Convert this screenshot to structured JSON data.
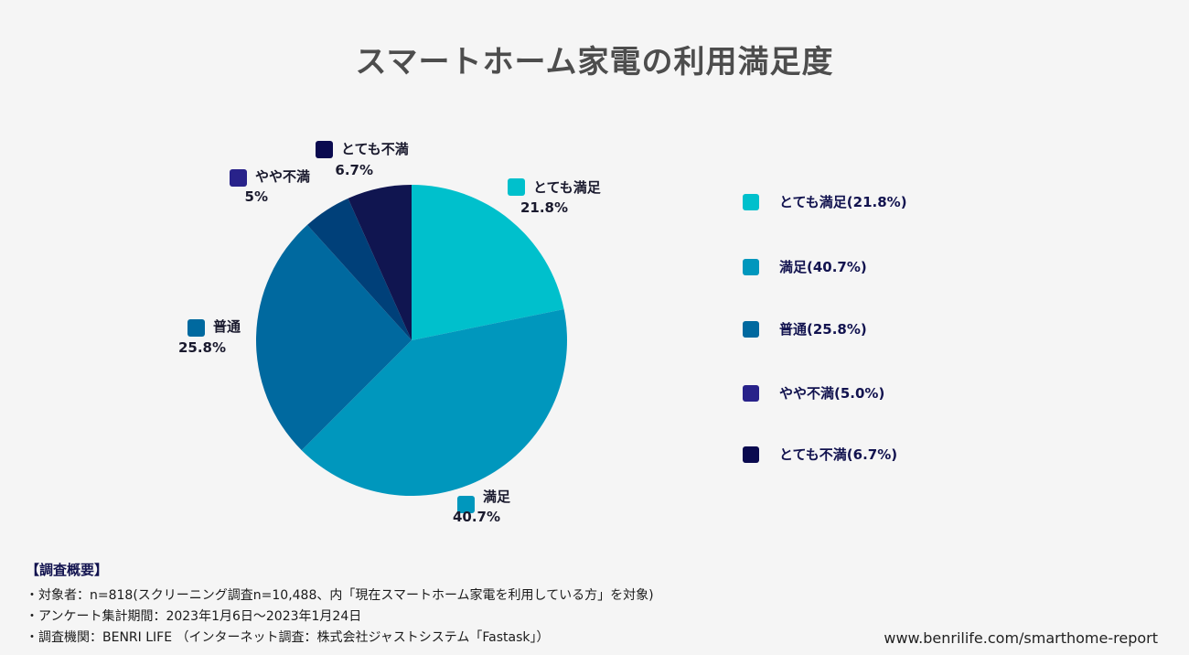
{
  "title": "スマートホーム家電の利用満足度",
  "chart_data": {
    "type": "pie",
    "title": "スマートホーム家電の利用満足度",
    "start_angle_deg": 0,
    "direction": "clockwise",
    "slices": [
      {
        "label": "とても満足",
        "value": 21.8,
        "value_label": "21.8%",
        "color": "#00c0cc",
        "legend": "とても満足(21.8%)"
      },
      {
        "label": "満足",
        "value": 40.7,
        "value_label": "40.7%",
        "color": "#0097bd",
        "legend": "満足(40.7%)"
      },
      {
        "label": "普通",
        "value": 25.8,
        "value_label": "25.8%",
        "color": "#00699f",
        "legend": "普通(25.8%)"
      },
      {
        "label": "やや不満",
        "value": 5.0,
        "value_label": "5%",
        "color": "#004079",
        "legend_color": "#28228a",
        "legend": "やや不満(5.0%)"
      },
      {
        "label": "とても不満",
        "value": 6.7,
        "value_label": "6.7%",
        "color": "#101550",
        "legend_color": "#0a0a4f",
        "legend": "とても不満(6.7%)"
      }
    ],
    "legend_position": "right"
  },
  "survey": {
    "heading": "【調査概要】",
    "lines": [
      "・対象者：n=818(スクリーニング調査n=10,488、内「現在スマートホーム家電を利用している方」を対象)",
      "・アンケート集計期間：2023年1月6日〜2023年1月24日",
      "・調査機関：BENRI LIFE （インターネット調査：株式会社ジャストシステム「Fastask」）"
    ]
  },
  "footer": {
    "url": "www.benrilife.com/smarthome-report"
  }
}
